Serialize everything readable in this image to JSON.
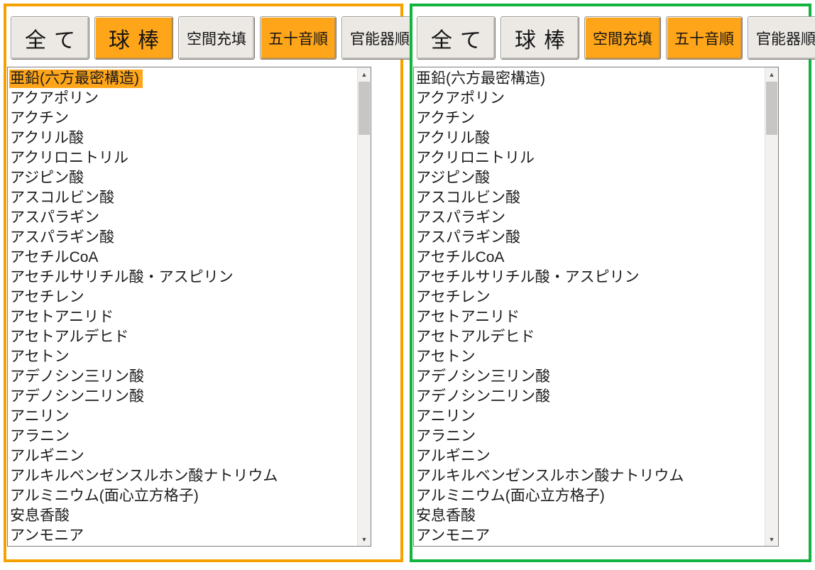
{
  "colors": {
    "left_panel_border": "#F5A201",
    "right_panel_border": "#10B43E",
    "active_button_bg": "#FFA519",
    "inactive_button_bg": "#ECE9E5",
    "selected_item_bg": "#FFA519",
    "list_text": "#1C1C1C"
  },
  "list_items": [
    "亜鉛(六方最密構造)",
    "アクアポリン",
    "アクチン",
    "アクリル酸",
    "アクリロニトリル",
    "アジピン酸",
    "アスコルビン酸",
    "アスパラギン",
    "アスパラギン酸",
    "アセチルCoA",
    "アセチルサリチル酸・アスピリン",
    "アセチレン",
    "アセトアニリド",
    "アセトアルデヒド",
    "アセトン",
    "アデノシン三リン酸",
    "アデノシン二リン酸",
    "アニリン",
    "アラニン",
    "アルギニン",
    "アルキルベンゼンスルホン酸ナトリウム",
    "アルミニウム(面心立方格子)",
    "安息香酸",
    "アンモニア"
  ],
  "scrollbar": {
    "up_glyph": "▲",
    "down_glyph": "▼"
  },
  "panels": [
    {
      "id": "left",
      "border_color": "#F5A201",
      "selected_item_index": 0,
      "buttons": [
        {
          "label": "全て",
          "size": "large",
          "active": false
        },
        {
          "label": "球棒",
          "size": "large",
          "active": true
        },
        {
          "label": "空間充填",
          "size": "small",
          "active": false
        },
        {
          "label": "五十音順",
          "size": "small",
          "active": true
        },
        {
          "label": "官能器順",
          "size": "small",
          "active": false
        }
      ]
    },
    {
      "id": "right",
      "border_color": "#10B43E",
      "selected_item_index": null,
      "buttons": [
        {
          "label": "全て",
          "size": "large",
          "active": false
        },
        {
          "label": "球棒",
          "size": "large",
          "active": false
        },
        {
          "label": "空間充填",
          "size": "small",
          "active": true
        },
        {
          "label": "五十音順",
          "size": "small",
          "active": true
        },
        {
          "label": "官能器順",
          "size": "small",
          "active": false
        }
      ]
    }
  ]
}
